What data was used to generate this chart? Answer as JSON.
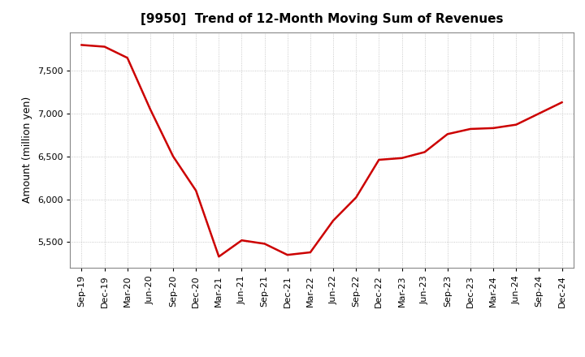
{
  "title": "[9950]  Trend of 12-Month Moving Sum of Revenues",
  "ylabel": "Amount (million yen)",
  "line_color": "#CC0000",
  "background_color": "#FFFFFF",
  "grid_color": "#BBBBBB",
  "x_labels": [
    "Sep-19",
    "Dec-19",
    "Mar-20",
    "Jun-20",
    "Sep-20",
    "Dec-20",
    "Mar-21",
    "Jun-21",
    "Sep-21",
    "Dec-21",
    "Mar-22",
    "Jun-22",
    "Sep-22",
    "Dec-22",
    "Mar-23",
    "Jun-23",
    "Sep-23",
    "Dec-23",
    "Mar-24",
    "Jun-24",
    "Sep-24",
    "Dec-24"
  ],
  "y_values": [
    7800,
    7780,
    7650,
    7050,
    6500,
    6100,
    5330,
    5520,
    5480,
    5350,
    5380,
    5750,
    6020,
    6460,
    6480,
    6550,
    6760,
    6820,
    6830,
    6870,
    7000,
    7130
  ],
  "ylim": [
    5200,
    7950
  ],
  "yticks": [
    5500,
    6000,
    6500,
    7000,
    7500
  ],
  "title_fontsize": 11,
  "label_fontsize": 9,
  "tick_fontsize": 8
}
